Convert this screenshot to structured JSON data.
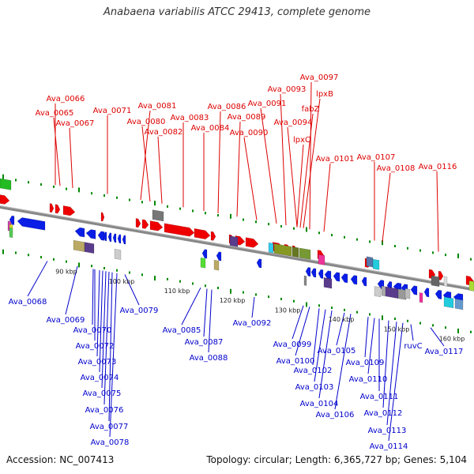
{
  "title": "Anabaena variabilis ATCC 29413, complete genome",
  "footer": {
    "accession": "Accession: NC_007413",
    "summary": "Topology: circular; Length: 6,365,727 bp; Genes: 5,104"
  },
  "colors": {
    "forward": "#ee0000",
    "reverse": "#0a1ee6",
    "backbone": "#888888",
    "tick": "#008800",
    "forward_label": "#dd0000",
    "reverse_label": "#0000cc"
  },
  "scale_labels": [
    "90 kbp",
    "100 kbp",
    "110 kbp",
    "120 kbp",
    "130 kbp",
    "140 kbp",
    "150 kbp",
    "160 kbp"
  ],
  "top_labels": [
    "Ava_0066",
    "Ava_0065",
    "Ava_0067",
    "Ava_0071",
    "Ava_0081",
    "Ava_0080",
    "Ava_0082",
    "Ava_0083",
    "Ava_0084",
    "Ava_0086",
    "Ava_0089",
    "Ava_0090",
    "Ava_0091",
    "Ava_0093",
    "Ava_0094",
    "Ava_0097",
    "lpxB",
    "fabZ",
    "lpxC",
    "Ava_0101",
    "Ava_0107",
    "Ava_0108",
    "Ava_0116"
  ],
  "bottom_labels": [
    "Ava_0068",
    "Ava_0069",
    "Ava_0070",
    "Ava_0072",
    "Ava_0073",
    "Ava_0074",
    "Ava_0075",
    "Ava_0076",
    "Ava_0077",
    "Ava_0078",
    "Ava_0079",
    "Ava_0085",
    "Ava_0087",
    "Ava_0088",
    "Ava_0092",
    "Ava_0099",
    "Ava_0100",
    "Ava_0102",
    "Ava_0103",
    "Ava_0104",
    "Ava_0105",
    "Ava_0106",
    "Ava_0109",
    "Ava_0110",
    "Ava_0111",
    "Ava_0112",
    "Ava_0113",
    "Ava_0114",
    "ruvC",
    "Ava_0117"
  ]
}
